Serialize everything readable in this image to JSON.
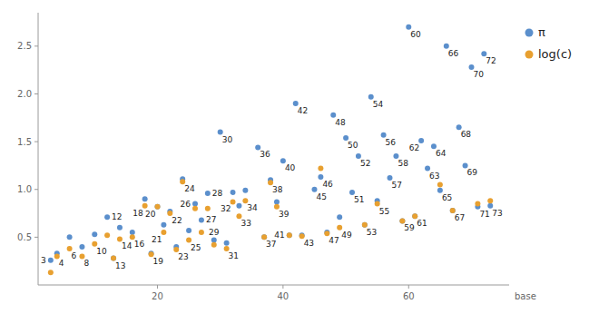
{
  "chart_data": {
    "type": "scatter",
    "xlabel": "base",
    "x": [
      3,
      4,
      6,
      8,
      10,
      12,
      13,
      14,
      16,
      18,
      19,
      20,
      21,
      22,
      23,
      24,
      25,
      26,
      27,
      28,
      29,
      30,
      31,
      32,
      33,
      34,
      36,
      37,
      38,
      39,
      40,
      41,
      42,
      43,
      45,
      46,
      47,
      48,
      49,
      50,
      51,
      52,
      53,
      54,
      55,
      56,
      57,
      58,
      59,
      60,
      61,
      62,
      63,
      64,
      65,
      66,
      67,
      68,
      69,
      70,
      71,
      72,
      73
    ],
    "series": [
      {
        "name": "π",
        "color": "#5b8fcc",
        "values": [
          0.26,
          0.33,
          0.5,
          0.4,
          0.53,
          0.71,
          0.28,
          0.6,
          0.55,
          0.9,
          0.33,
          0.82,
          0.63,
          0.77,
          0.4,
          1.11,
          0.57,
          0.85,
          0.68,
          0.96,
          0.47,
          1.6,
          0.44,
          0.97,
          0.83,
          0.99,
          1.44,
          0.5,
          1.1,
          0.87,
          1.3,
          0.52,
          1.9,
          0.52,
          1.0,
          1.13,
          0.55,
          1.78,
          0.71,
          1.54,
          0.97,
          1.35,
          0.63,
          1.97,
          0.88,
          1.57,
          1.12,
          1.35,
          0.67,
          2.7,
          0.72,
          1.51,
          1.22,
          1.45,
          0.99,
          2.5,
          0.78,
          1.65,
          1.25,
          2.28,
          0.82,
          2.42,
          0.83
        ]
      },
      {
        "name": "log(c)",
        "color": "#e8a030",
        "values": [
          0.13,
          0.3,
          0.38,
          0.3,
          0.43,
          0.52,
          0.28,
          0.48,
          0.5,
          0.83,
          0.32,
          0.82,
          0.55,
          0.75,
          0.37,
          1.08,
          0.47,
          0.8,
          0.55,
          0.8,
          0.42,
          null,
          0.38,
          0.87,
          0.72,
          0.88,
          null,
          0.5,
          1.07,
          0.82,
          null,
          0.52,
          null,
          0.51,
          null,
          1.22,
          0.54,
          null,
          0.6,
          null,
          null,
          null,
          0.63,
          null,
          0.85,
          null,
          null,
          null,
          0.67,
          null,
          0.72,
          null,
          null,
          null,
          1.05,
          null,
          0.78,
          null,
          null,
          null,
          0.85,
          null,
          0.88
        ]
      }
    ],
    "xlim": [
      1,
      76
    ],
    "ylim": [
      0,
      2.85
    ],
    "xticks": [
      20,
      40,
      60
    ],
    "yticks": [
      0.5,
      {
        "value": 1.0,
        "label": "1.0"
      },
      1.5,
      {
        "value": 2.0,
        "label": "2.0"
      },
      2.5
    ],
    "grid": false,
    "legend": "upper right"
  }
}
